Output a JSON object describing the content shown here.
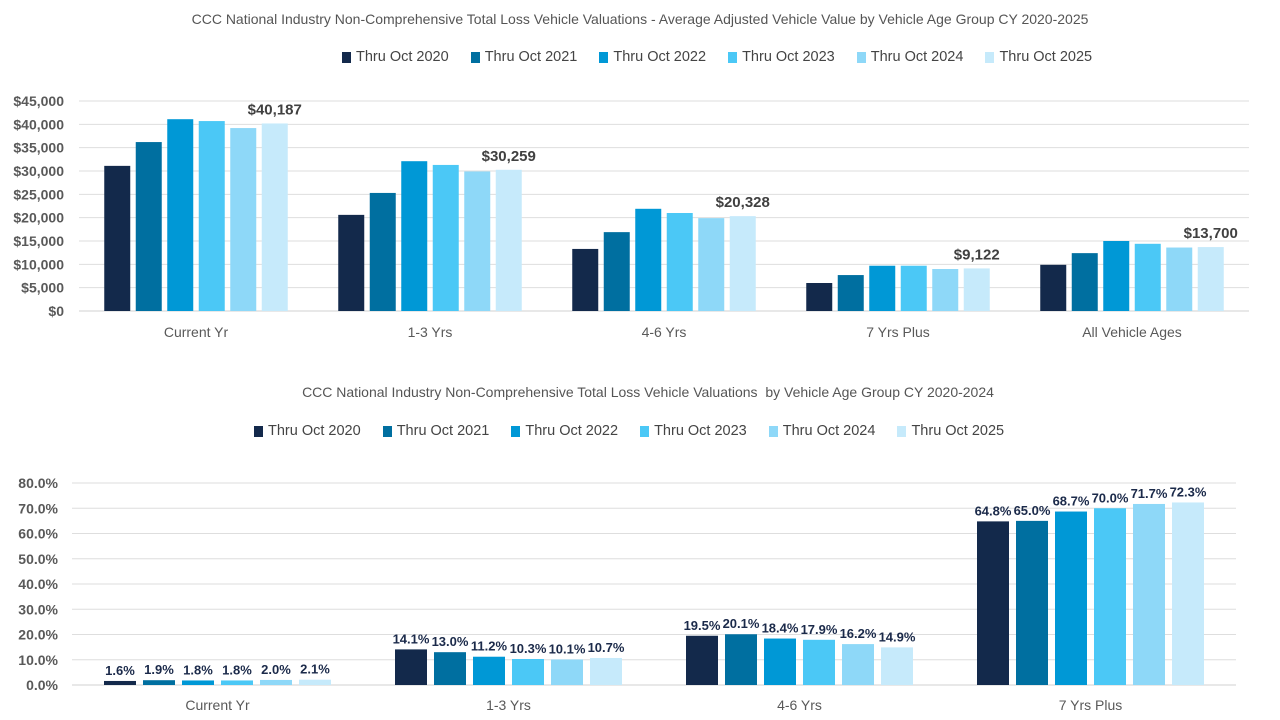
{
  "chart_data": [
    {
      "type": "bar",
      "title": "CCC National Industry Non-Comprehensive Total Loss Vehicle Valuations - Average Adjusted Vehicle Value by Vehicle Age Group CY 2020-2025",
      "categories": [
        "Current Yr",
        "1-3 Yrs",
        "4-6 Yrs",
        "7 Yrs Plus",
        "All Vehicle Ages"
      ],
      "series": [
        {
          "name": "Thru Oct 2020",
          "color": "#13294b",
          "values": [
            31100,
            20600,
            13300,
            6000,
            9900
          ]
        },
        {
          "name": "Thru Oct 2021",
          "color": "#006fa0",
          "values": [
            36200,
            25300,
            16900,
            7700,
            12400
          ]
        },
        {
          "name": "Thru Oct 2022",
          "color": "#0098d6",
          "values": [
            41100,
            32100,
            21900,
            9700,
            15000
          ]
        },
        {
          "name": "Thru Oct 2023",
          "color": "#4bc8f6",
          "values": [
            40700,
            31300,
            21000,
            9700,
            14400
          ]
        },
        {
          "name": "Thru Oct 2024",
          "color": "#8ed8f8",
          "values": [
            39200,
            29900,
            19900,
            9000,
            13600
          ]
        },
        {
          "name": "Thru Oct 2025",
          "color": "#c6eafb",
          "values": [
            40187,
            30259,
            20328,
            9122,
            13700
          ]
        }
      ],
      "data_labels": [
        "$40,187",
        "$30,259",
        "$20,328",
        "$9,122",
        "$13,700"
      ],
      "yticks": [
        "$0",
        "$5,000",
        "$10,000",
        "$15,000",
        "$20,000",
        "$25,000",
        "$30,000",
        "$35,000",
        "$40,000",
        "$45,000"
      ],
      "ylim": [
        0,
        45000
      ],
      "grid": true,
      "legend": "top"
    },
    {
      "type": "bar",
      "title": "CCC National Industry Non-Comprehensive Total Loss Vehicle Valuations  by Vehicle Age Group CY 2020-2024",
      "categories": [
        "Current Yr",
        "1-3 Yrs",
        "4-6 Yrs",
        "7 Yrs Plus"
      ],
      "series": [
        {
          "name": "Thru Oct 2020",
          "color": "#13294b",
          "values": [
            1.6,
            14.1,
            19.5,
            64.8
          ],
          "labels": [
            "1.6%",
            "14.1%",
            "19.5%",
            "64.8%"
          ]
        },
        {
          "name": "Thru Oct 2021",
          "color": "#006fa0",
          "values": [
            1.9,
            13.0,
            20.1,
            65.0
          ],
          "labels": [
            "1.9%",
            "13.0%",
            "20.1%",
            "65.0%"
          ]
        },
        {
          "name": "Thru Oct 2022",
          "color": "#0098d6",
          "values": [
            1.8,
            11.2,
            18.4,
            68.7
          ],
          "labels": [
            "1.8%",
            "11.2%",
            "18.4%",
            "68.7%"
          ]
        },
        {
          "name": "Thru Oct 2023",
          "color": "#4bc8f6",
          "values": [
            1.8,
            10.3,
            17.9,
            70.0
          ],
          "labels": [
            "1.8%",
            "10.3%",
            "17.9%",
            "70.0%"
          ]
        },
        {
          "name": "Thru Oct 2024",
          "color": "#8ed8f8",
          "values": [
            2.0,
            10.1,
            16.2,
            71.7
          ],
          "labels": [
            "2.0%",
            "10.1%",
            "16.2%",
            "71.7%"
          ]
        },
        {
          "name": "Thru Oct 2025",
          "color": "#c6eafb",
          "values": [
            2.1,
            10.7,
            14.9,
            72.3
          ],
          "labels": [
            "2.1%",
            "10.7%",
            "14.9%",
            "72.3%"
          ]
        }
      ],
      "yticks": [
        "0.0%",
        "10.0%",
        "20.0%",
        "30.0%",
        "40.0%",
        "50.0%",
        "60.0%",
        "70.0%",
        "80.0%"
      ],
      "ylim": [
        0,
        80
      ],
      "grid": true,
      "legend": "top"
    }
  ]
}
